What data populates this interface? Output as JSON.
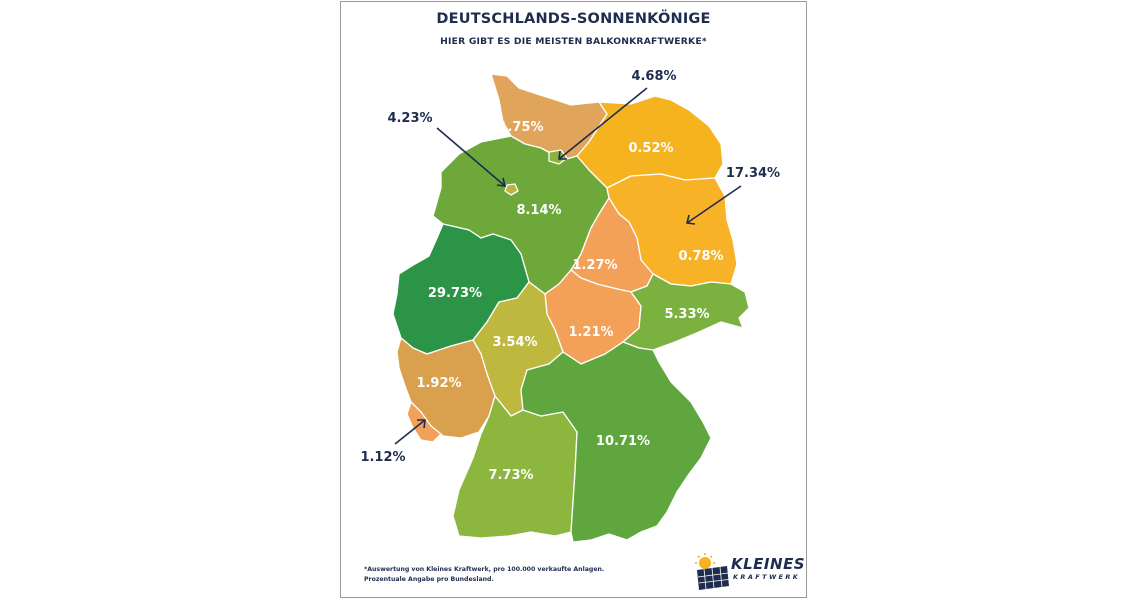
{
  "header": {
    "title": "DEUTSCHLANDS-SONNENKÖNIGE",
    "subtitle": "HIER GIBT ES DIE MEISTEN BALKONKRAFTWERKE*"
  },
  "map": {
    "regions": [
      {
        "id": "sh",
        "label": "1.75%",
        "value": 1.75,
        "color": "#e0a45a"
      },
      {
        "id": "hh",
        "label": "4.68%",
        "value": 4.68,
        "color": "#8cb33f"
      },
      {
        "id": "mv",
        "label": "0.52%",
        "value": 0.52,
        "color": "#f5b320"
      },
      {
        "id": "hb",
        "label": "4.23%",
        "value": 4.23,
        "color": "#b9b63d"
      },
      {
        "id": "ni",
        "label": "8.14%",
        "value": 8.14,
        "color": "#6ea83b"
      },
      {
        "id": "be",
        "label": "17.34%",
        "value": 17.34,
        "color": "#3b8f3a"
      },
      {
        "id": "bb",
        "label": "0.78%",
        "value": 0.78,
        "color": "#f7b228"
      },
      {
        "id": "st",
        "label": "1.27%",
        "value": 1.27,
        "color": "#f3a058"
      },
      {
        "id": "nw",
        "label": "29.73%",
        "value": 29.73,
        "color": "#2b9447"
      },
      {
        "id": "th",
        "label": "1.21%",
        "value": 1.21,
        "color": "#f3a058"
      },
      {
        "id": "sn",
        "label": "5.33%",
        "value": 5.33,
        "color": "#7bb13f"
      },
      {
        "id": "he",
        "label": "3.54%",
        "value": 3.54,
        "color": "#bfb83e"
      },
      {
        "id": "rp",
        "label": "1.92%",
        "value": 1.92,
        "color": "#d9a14d"
      },
      {
        "id": "sl",
        "label": "1.12%",
        "value": 1.12,
        "color": "#f3a058"
      },
      {
        "id": "bw",
        "label": "7.73%",
        "value": 7.73,
        "color": "#8cb63e"
      },
      {
        "id": "by",
        "label": "10.71%",
        "value": 10.71,
        "color": "#5ea63d"
      }
    ]
  },
  "footnote": {
    "line1": "*Auswertung von Kleines Kraftwerk, pro 100.000 verkaufte Anlagen.",
    "line2": "Prozentuale Angabe pro Bundesland."
  },
  "logo": {
    "line1": "KLEINES",
    "line2": "KRAFTWERK"
  },
  "colors": {
    "text": "#1e2c4e",
    "border": "#9a9a9a"
  }
}
